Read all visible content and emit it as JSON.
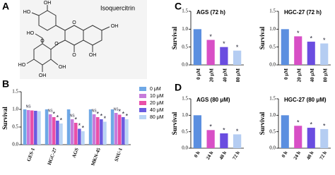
{
  "panel_labels": [
    "A",
    "B",
    "C",
    "D"
  ],
  "structure": {
    "name": "Isoquercitrin",
    "atoms": [
      "OH",
      "HO",
      "HO",
      "O",
      "OH",
      "O",
      "O",
      "O",
      "HO",
      "OH",
      "OH",
      "OH"
    ]
  },
  "chart_data": [
    {
      "type": "bar",
      "y_label": "Survival",
      "categories": [
        "GES-1",
        "HGC-27",
        "AGS",
        "MKN-45",
        "SNU-1"
      ],
      "ylim": [
        0,
        1.5
      ],
      "yticks": [
        {
          "value": 0,
          "label": "0.0"
        },
        {
          "value": 0.5,
          "label": "0.5"
        },
        {
          "value": 1,
          "label": "1.0"
        },
        {
          "value": 1.5,
          "label": "1.5"
        }
      ],
      "legend": "right",
      "series": [
        {
          "name": "0 μM",
          "color": "#6fa8e6",
          "values": [
            1.0,
            1.0,
            1.0,
            1.0,
            1.0
          ]
        },
        {
          "name": "10 μM",
          "color": "#c77bdb",
          "values": [
            0.98,
            0.86,
            0.72,
            0.86,
            0.9
          ],
          "sig": [
            "NS",
            "NS",
            "NS",
            "NS",
            "NS"
          ]
        },
        {
          "name": "20 μM",
          "color": "#e94fa8",
          "values": [
            0.97,
            0.78,
            0.62,
            0.78,
            0.85
          ],
          "sig": [
            null,
            "*",
            "*",
            "*",
            "*"
          ]
        },
        {
          "name": "40 μM",
          "color": "#6b5be0",
          "values": [
            0.96,
            0.68,
            0.45,
            0.72,
            0.78
          ],
          "sig": [
            null,
            "*",
            "*",
            "*",
            "*"
          ]
        },
        {
          "name": "80 μM",
          "color": "#b9d4f5",
          "values": [
            0.95,
            0.6,
            0.38,
            0.65,
            0.72
          ],
          "sig": [
            null,
            "*",
            "*",
            "*",
            "*"
          ]
        }
      ]
    },
    {
      "type": "bar",
      "title": "AGS (72 h)",
      "y_label": "Survival",
      "categories": [
        "0 μM",
        "20 μM",
        "40 μM",
        "80 μM"
      ],
      "values": [
        1.0,
        0.7,
        0.5,
        0.4
      ],
      "sig": [
        null,
        "*",
        "*",
        "*"
      ],
      "colors": [
        "#5b8fe0",
        "#d84fc6",
        "#6a4de0",
        "#b5cdf2"
      ],
      "ylim": [
        0,
        1.5
      ],
      "yticks": [
        {
          "value": 0,
          "label": "0.0"
        },
        {
          "value": 0.5,
          "label": "0.5"
        },
        {
          "value": 1,
          "label": "1.0"
        },
        {
          "value": 1.5,
          "label": "1.5"
        }
      ]
    },
    {
      "type": "bar",
      "title": "HGC-27 (72 h)",
      "y_label": "Survival",
      "categories": [
        "0 μM",
        "20 μM",
        "40 μM",
        "80 μM"
      ],
      "values": [
        1.0,
        0.8,
        0.65,
        0.6
      ],
      "sig": [
        null,
        "*",
        "*",
        "*"
      ],
      "colors": [
        "#5b8fe0",
        "#d84fc6",
        "#6a4de0",
        "#b5cdf2"
      ],
      "ylim": [
        0,
        1.5
      ],
      "yticks": [
        {
          "value": 0,
          "label": "0.0"
        },
        {
          "value": 0.5,
          "label": "0.5"
        },
        {
          "value": 1,
          "label": "1.0"
        },
        {
          "value": 1.5,
          "label": "1.5"
        }
      ]
    },
    {
      "type": "bar",
      "title": "AGS (80 μM)",
      "y_label": "Survival",
      "categories": [
        "0 h",
        "24 h",
        "48 h",
        "72 h"
      ],
      "values": [
        1.0,
        0.55,
        0.45,
        0.42
      ],
      "sig": [
        null,
        "*",
        "*",
        "*"
      ],
      "colors": [
        "#5b8fe0",
        "#d84fc6",
        "#6a4de0",
        "#b5cdf2"
      ],
      "ylim": [
        0,
        1.5
      ],
      "yticks": [
        {
          "value": 0,
          "label": "0.0"
        },
        {
          "value": 0.5,
          "label": "0.5"
        },
        {
          "value": 1,
          "label": "1.0"
        },
        {
          "value": 1.5,
          "label": "1.5"
        }
      ]
    },
    {
      "type": "bar",
      "title": "HGC-27 (80 μM)",
      "y_label": "Survival",
      "categories": [
        "0 h",
        "24 h",
        "48 h",
        "72 h"
      ],
      "values": [
        1.0,
        0.68,
        0.62,
        0.58
      ],
      "sig": [
        null,
        "*",
        "*",
        "*"
      ],
      "colors": [
        "#5b8fe0",
        "#d84fc6",
        "#6a4de0",
        "#b5cdf2"
      ],
      "ylim": [
        0,
        1.5
      ],
      "yticks": [
        {
          "value": 0,
          "label": "0.0"
        },
        {
          "value": 0.5,
          "label": "0.5"
        },
        {
          "value": 1,
          "label": "1.0"
        },
        {
          "value": 1.5,
          "label": "1.5"
        }
      ]
    }
  ]
}
